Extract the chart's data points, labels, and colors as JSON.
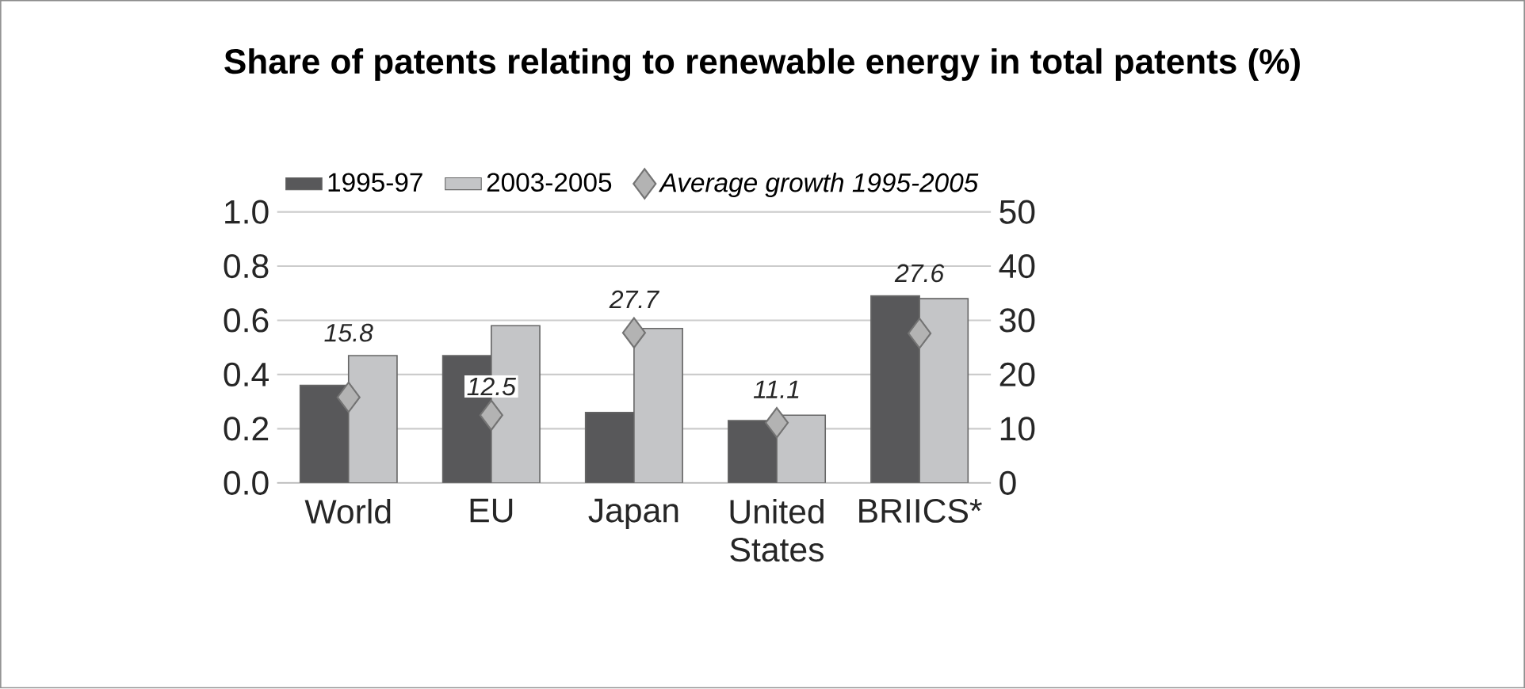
{
  "chart_data": {
    "type": "bar",
    "title": "Share of patents relating to renewable energy in total patents (%)",
    "categories": [
      "World",
      "EU",
      "Japan",
      "United States",
      "BRIICS*"
    ],
    "series": [
      {
        "name": "1995-97",
        "color": "#58585a",
        "values": [
          0.36,
          0.47,
          0.26,
          0.23,
          0.69
        ]
      },
      {
        "name": "2003-2005",
        "color": "#c4c5c7",
        "values": [
          0.47,
          0.58,
          0.57,
          0.25,
          0.68
        ]
      },
      {
        "name": "Average growth 1995-2005",
        "type": "scatter",
        "axis": "y2",
        "marker": "diamond",
        "color": "#b3b3b3",
        "x": [
          "World",
          "EU",
          "Japan",
          "United States",
          "BRIICS*"
        ],
        "values": [
          15.8,
          12.5,
          27.7,
          11.1,
          27.6
        ],
        "value_labels": [
          "15.8",
          "12.5",
          "27.7",
          "11.1",
          "27.6"
        ]
      }
    ],
    "ylim": [
      0,
      1
    ],
    "yticks": [
      {
        "value": 0,
        "label": "0.0"
      },
      0.2,
      0.4,
      0.6,
      0.8,
      {
        "value": 1,
        "label": "1.0"
      }
    ],
    "y2lim": [
      0,
      50
    ],
    "y2ticks": [
      0,
      10,
      20,
      30,
      40,
      50
    ],
    "grid": "y",
    "legend": "top"
  }
}
